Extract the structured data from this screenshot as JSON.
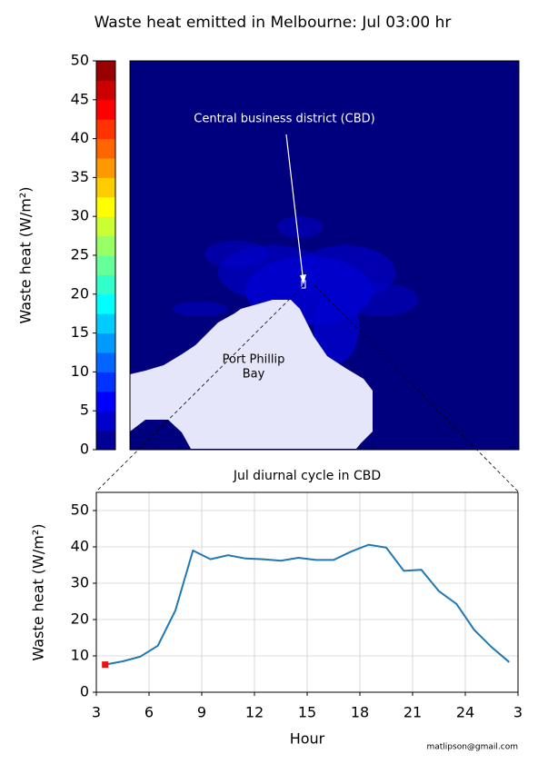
{
  "chart_data": [
    {
      "type": "map",
      "title": "Waste heat emitted in Melbourne: Jul 03:00 hr",
      "colorbar": {
        "label": "Waste heat (W/m²)",
        "ylim": [
          0,
          50
        ],
        "yticks": [
          0,
          5,
          10,
          15,
          20,
          25,
          30,
          35,
          40,
          45,
          50
        ],
        "colormap": "jet",
        "levels": 20
      },
      "annotations": {
        "cbd": "Central business district (CBD)",
        "bay": [
          "Port Phillip",
          "Bay"
        ]
      }
    },
    {
      "type": "line",
      "title": "Jul diurnal cycle in CBD",
      "x_label": "Hour",
      "y_label": "Waste heat (W/m²)",
      "xlim": [
        3,
        27
      ],
      "xticks": [
        3,
        6,
        9,
        12,
        15,
        18,
        21,
        24,
        {
          "value": 27,
          "label": "3"
        }
      ],
      "ylim": [
        0,
        55
      ],
      "yticks": [
        0,
        10,
        20,
        30,
        40,
        50
      ],
      "grid": true,
      "x": [
        3.5,
        4.5,
        5.5,
        6.5,
        7.5,
        8.5,
        9.5,
        10.5,
        11.5,
        12.5,
        13.5,
        14.5,
        15.5,
        16.5,
        17.5,
        18.5,
        19.5,
        20.5,
        21.5,
        22.5,
        23.5,
        24.5,
        25.5,
        26.5
      ],
      "series": [
        {
          "color": "#1f77b4",
          "values": [
            7.6,
            8.5,
            9.8,
            12.8,
            22.5,
            39.0,
            36.6,
            37.7,
            36.8,
            36.6,
            36.2,
            37.0,
            36.4,
            36.4,
            38.7,
            40.6,
            39.8,
            33.4,
            33.7,
            27.8,
            24.3,
            17.2,
            12.4,
            8.3
          ]
        }
      ],
      "highlight": {
        "index": 0,
        "color": "#ee1111"
      },
      "credit": "matlipson@gmail.com"
    }
  ]
}
